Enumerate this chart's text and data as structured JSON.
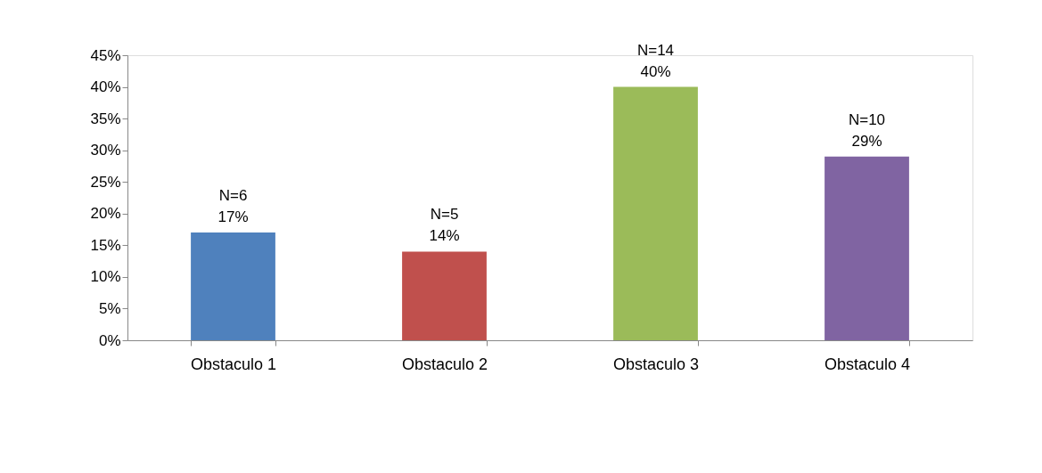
{
  "chart_data": {
    "type": "bar",
    "categories": [
      "Obstaculo 1",
      "Obstaculo 2",
      "Obstaculo 3",
      "Obstaculo 4"
    ],
    "values": [
      17,
      14,
      40,
      29
    ],
    "colors": [
      "#4f81bd",
      "#c0504d",
      "#9bbb59",
      "#8064a2"
    ],
    "value_labels": [
      "N=6\n17%",
      "N=5\n14%",
      "N=14\n40%",
      "N=10\n29%"
    ],
    "ylim": [
      0,
      45
    ],
    "yticks": [
      {
        "value": 0,
        "label": "0%"
      },
      {
        "value": 5,
        "label": "5%"
      },
      {
        "value": 10,
        "label": "10%"
      },
      {
        "value": 15,
        "label": "15%"
      },
      {
        "value": 20,
        "label": "20%"
      },
      {
        "value": 25,
        "label": "25%"
      },
      {
        "value": 30,
        "label": "30%"
      },
      {
        "value": 35,
        "label": "35%"
      },
      {
        "value": 40,
        "label": "40%"
      },
      {
        "value": 45,
        "label": "45%"
      }
    ],
    "grid": false
  }
}
